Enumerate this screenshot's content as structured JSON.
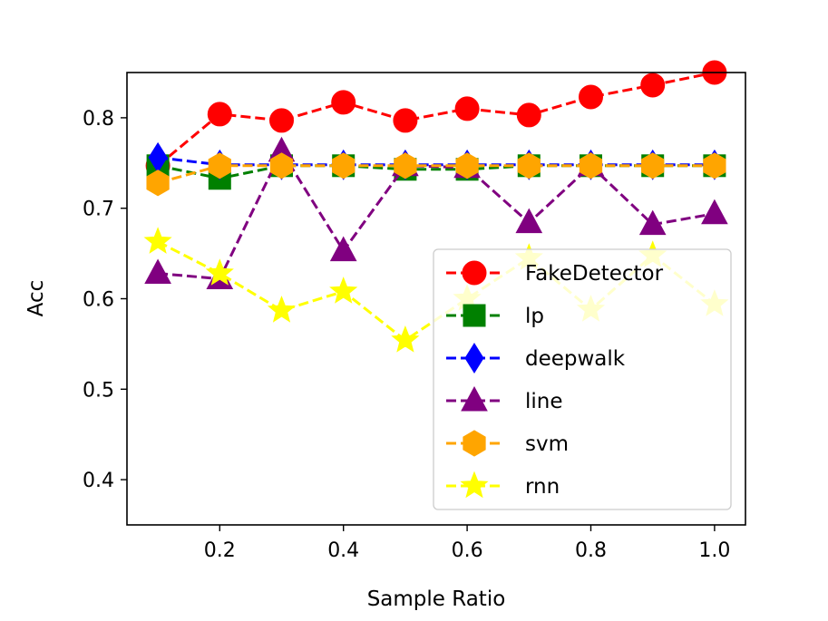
{
  "chart_data": {
    "type": "line",
    "title": "",
    "xlabel": "Sample Ratio",
    "ylabel": "Acc",
    "x": [
      0.1,
      0.2,
      0.3,
      0.4,
      0.5,
      0.6,
      0.7,
      0.8,
      0.9,
      1.0
    ],
    "xlim": [
      0.05,
      1.05
    ],
    "ylim": [
      0.35,
      0.85
    ],
    "xticks": [
      0.2,
      0.4,
      0.6,
      0.8,
      1.0
    ],
    "xtick_labels": [
      "0.2",
      "0.4",
      "0.6",
      "0.8",
      "1.0"
    ],
    "yticks": [
      0.4,
      0.5,
      0.6,
      0.7,
      0.8
    ],
    "ytick_labels": [
      "0.4",
      "0.5",
      "0.6",
      "0.7",
      "0.8"
    ],
    "grid": false,
    "legend_position": "lower-right",
    "series": [
      {
        "name": "FakeDetector",
        "color": "#ff0000",
        "marker": "circle",
        "values": [
          0.747,
          0.804,
          0.797,
          0.817,
          0.797,
          0.81,
          0.803,
          0.823,
          0.836,
          0.85
        ]
      },
      {
        "name": "lp",
        "color": "#008000",
        "marker": "square",
        "values": [
          0.747,
          0.733,
          0.747,
          0.747,
          0.743,
          0.743,
          0.747,
          0.747,
          0.747,
          0.747
        ]
      },
      {
        "name": "deepwalk",
        "color": "#0000ff",
        "marker": "diamond",
        "values": [
          0.756,
          0.748,
          0.748,
          0.748,
          0.748,
          0.748,
          0.748,
          0.748,
          0.748,
          0.748
        ]
      },
      {
        "name": "line",
        "color": "#800080",
        "marker": "triangle",
        "values": [
          0.628,
          0.622,
          0.763,
          0.653,
          0.747,
          0.745,
          0.684,
          0.747,
          0.682,
          0.694
        ]
      },
      {
        "name": "svm",
        "color": "#ffa500",
        "marker": "hexagon",
        "values": [
          0.728,
          0.747,
          0.747,
          0.747,
          0.747,
          0.747,
          0.747,
          0.747,
          0.747,
          0.747
        ]
      },
      {
        "name": "rnn",
        "color": "#ffff00",
        "marker": "star",
        "values": [
          0.663,
          0.628,
          0.587,
          0.608,
          0.554,
          0.6,
          0.645,
          0.588,
          0.648,
          0.594
        ]
      }
    ]
  }
}
